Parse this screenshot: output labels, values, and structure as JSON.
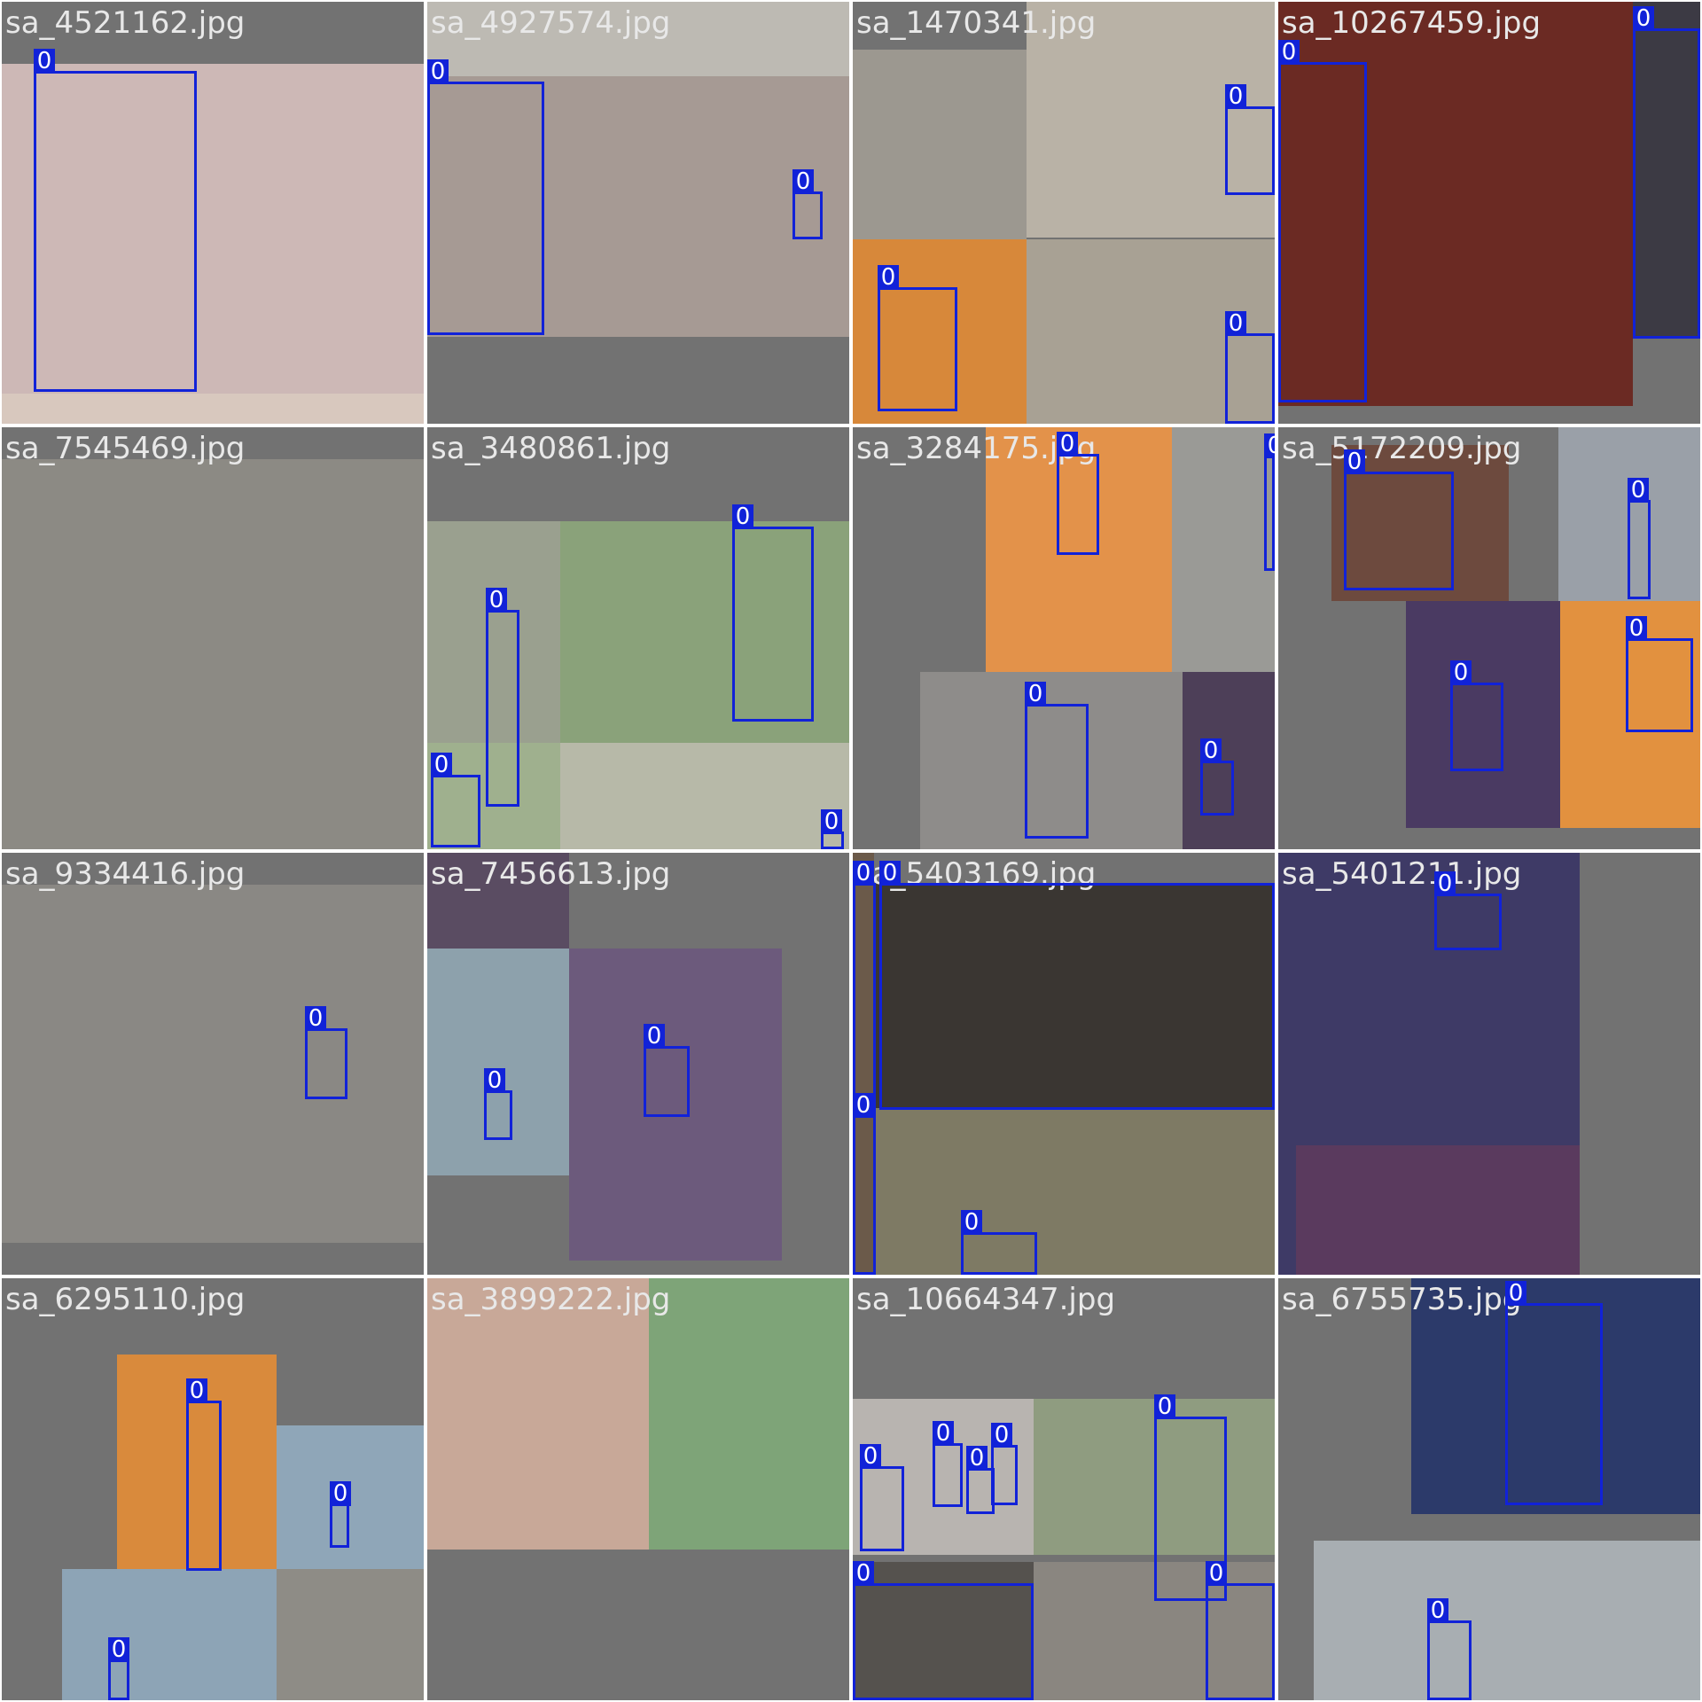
{
  "colors": {
    "background": "#727272",
    "box": "#1122d8",
    "label_text": "#e8e8e8",
    "tag_text": "#ffffff"
  },
  "tiles": [
    {
      "name": "sa_4521162.jpg",
      "photos": [
        {
          "color": "#cdb8b6"
        },
        {
          "color": "#d8c8be"
        }
      ],
      "boxes": [
        {
          "label": "0"
        }
      ]
    },
    {
      "name": "sa_4927574.jpg",
      "photos": [
        {
          "color": "#bdbab3"
        },
        {
          "color": "#a69a94"
        },
        {
          "color": "#9b9b98"
        }
      ],
      "boxes": [
        {
          "label": "0"
        },
        {
          "label": "0"
        }
      ]
    },
    {
      "name": "sa_1470341.jpg",
      "photos": [
        {
          "color": "#9c9890"
        },
        {
          "color": "#b9b2a6"
        },
        {
          "color": "#a8a194"
        },
        {
          "color": "#d7883a"
        }
      ],
      "boxes": [
        {
          "label": "0"
        },
        {
          "label": "0"
        },
        {
          "label": "0"
        }
      ]
    },
    {
      "name": "sa_10267459.jpg",
      "photos": [
        {
          "color": "#6b2a23"
        },
        {
          "color": "#3c3a44"
        }
      ],
      "boxes": [
        {
          "label": "0"
        },
        {
          "label": "0"
        }
      ]
    },
    {
      "name": "sa_7545469.jpg",
      "photos": [
        {
          "color": "#8c8a84"
        }
      ],
      "boxes": []
    },
    {
      "name": "sa_3480861.jpg",
      "photos": [
        {
          "color": "#9aa08f"
        },
        {
          "color": "#8aa27a"
        },
        {
          "color": "#9fb08e"
        },
        {
          "color": "#b7b9a8"
        }
      ],
      "boxes": [
        {
          "label": "0"
        },
        {
          "label": "0"
        },
        {
          "label": "0"
        },
        {
          "label": "0"
        }
      ]
    },
    {
      "name": "sa_3284175.jpg",
      "photos": [
        {
          "color": "#e3924a"
        },
        {
          "color": "#9a9a96"
        },
        {
          "color": "#8e8c8a"
        },
        {
          "color": "#4d3f58"
        }
      ],
      "boxes": [
        {
          "label": "0"
        },
        {
          "label": "0"
        },
        {
          "label": "0"
        },
        {
          "label": "0"
        }
      ]
    },
    {
      "name": "sa_5172209.jpg",
      "photos": [
        {
          "color": "#6d4a3e"
        },
        {
          "color": "#9aa0a8"
        },
        {
          "color": "#4a3a62"
        },
        {
          "color": "#e2913f"
        }
      ],
      "boxes": [
        {
          "label": "0"
        },
        {
          "label": "0"
        },
        {
          "label": "0"
        },
        {
          "label": "0"
        }
      ]
    },
    {
      "name": "sa_9334416.jpg",
      "photos": [
        {
          "color": "#8a8884"
        }
      ],
      "boxes": [
        {
          "label": "0"
        }
      ]
    },
    {
      "name": "sa_7456613.jpg",
      "photos": [
        {
          "color": "#5a4c62"
        },
        {
          "color": "#8da1ac"
        },
        {
          "color": "#6c5a7c"
        }
      ],
      "boxes": [
        {
          "label": "0"
        },
        {
          "label": "0"
        }
      ]
    },
    {
      "name": "sa_5403169.jpg",
      "photos": [
        {
          "color": "#3a3632"
        },
        {
          "color": "#7e7a64"
        },
        {
          "color": "#6b5a4a"
        }
      ],
      "boxes": [
        {
          "label": "0"
        },
        {
          "label": "0"
        },
        {
          "label": "0"
        },
        {
          "label": "0"
        }
      ]
    },
    {
      "name": "sa_5401211.jpg",
      "photos": [
        {
          "color": "#3e3a66"
        },
        {
          "color": "#5a3a5e"
        }
      ],
      "boxes": [
        {
          "label": "0"
        }
      ]
    },
    {
      "name": "sa_6295110.jpg",
      "photos": [
        {
          "color": "#d98a3c"
        },
        {
          "color": "#8fa6b8"
        },
        {
          "color": "#8da4b6"
        },
        {
          "color": "#8e8c86"
        }
      ],
      "boxes": [
        {
          "label": "0"
        },
        {
          "label": "0"
        },
        {
          "label": "0"
        }
      ]
    },
    {
      "name": "sa_3899222.jpg",
      "photos": [
        {
          "color": "#c8a898"
        },
        {
          "color": "#7ea478"
        }
      ],
      "boxes": []
    },
    {
      "name": "sa_10664347.jpg",
      "photos": [
        {
          "color": "#b8b4b0"
        },
        {
          "color": "#8f9c80"
        },
        {
          "color": "#55524e"
        },
        {
          "color": "#8a8680"
        }
      ],
      "boxes": [
        {
          "label": "0"
        },
        {
          "label": "0"
        },
        {
          "label": "0"
        },
        {
          "label": "0"
        },
        {
          "label": "0"
        },
        {
          "label": "0"
        },
        {
          "label": "0"
        }
      ]
    },
    {
      "name": "sa_6755735.jpg",
      "photos": [
        {
          "color": "#2c3a6a"
        },
        {
          "color": "#a8aeb2"
        }
      ],
      "boxes": [
        {
          "label": "0"
        },
        {
          "label": "0"
        }
      ]
    }
  ]
}
